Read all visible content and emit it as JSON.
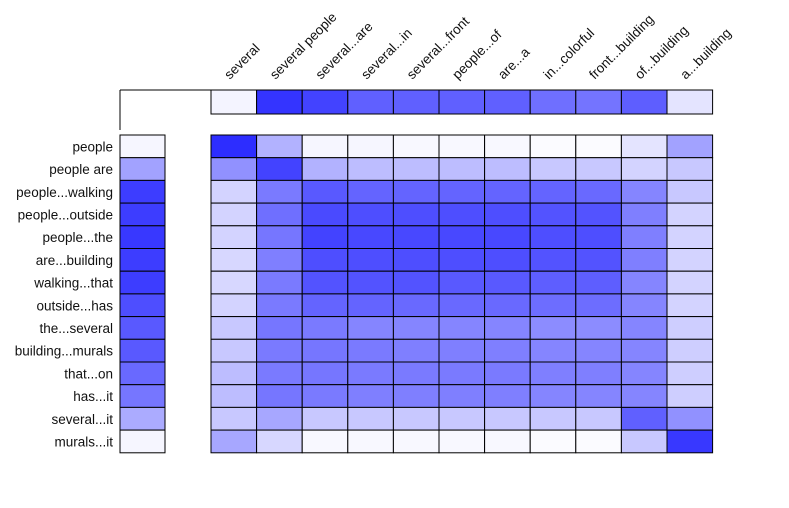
{
  "chart_data": {
    "type": "heatmap",
    "title": "",
    "xlabel": "",
    "ylabel": "",
    "x_labels": [
      "several",
      "several people",
      "several...are",
      "several...in",
      "several...front",
      "people...of",
      "are...a",
      "in...colorful",
      "front...building",
      "of...building",
      "a...building"
    ],
    "y_labels": [
      "people",
      "people are",
      "people...walking",
      "people...outside",
      "people...the",
      "are...building",
      "walking...that",
      "outside...has",
      "the...several",
      "building...murals",
      "that...on",
      "has...it",
      "several...it",
      "murals...it"
    ],
    "value_range": [
      0,
      1
    ],
    "low_color": "#ffffff",
    "high_color": "#2222ff",
    "top_strip": [
      0.05,
      0.92,
      0.85,
      0.72,
      0.72,
      0.72,
      0.72,
      0.65,
      0.63,
      0.73,
      0.12
    ],
    "left_strip": [
      0.04,
      0.42,
      0.88,
      0.88,
      0.9,
      0.88,
      0.88,
      0.8,
      0.75,
      0.75,
      0.68,
      0.62,
      0.38,
      0.04
    ],
    "matrix": [
      [
        0.95,
        0.35,
        0.04,
        0.04,
        0.03,
        0.03,
        0.03,
        0.02,
        0.02,
        0.12,
        0.42
      ],
      [
        0.5,
        0.85,
        0.35,
        0.3,
        0.3,
        0.3,
        0.3,
        0.25,
        0.25,
        0.2,
        0.25
      ],
      [
        0.2,
        0.6,
        0.75,
        0.7,
        0.7,
        0.7,
        0.7,
        0.7,
        0.68,
        0.55,
        0.25
      ],
      [
        0.2,
        0.65,
        0.82,
        0.8,
        0.8,
        0.8,
        0.8,
        0.78,
        0.78,
        0.58,
        0.2
      ],
      [
        0.2,
        0.62,
        0.85,
        0.83,
        0.83,
        0.83,
        0.83,
        0.8,
        0.8,
        0.58,
        0.2
      ],
      [
        0.18,
        0.58,
        0.8,
        0.8,
        0.8,
        0.8,
        0.8,
        0.78,
        0.78,
        0.58,
        0.2
      ],
      [
        0.18,
        0.6,
        0.78,
        0.78,
        0.78,
        0.75,
        0.75,
        0.73,
        0.73,
        0.55,
        0.2
      ],
      [
        0.2,
        0.6,
        0.7,
        0.7,
        0.68,
        0.68,
        0.68,
        0.66,
        0.66,
        0.55,
        0.2
      ],
      [
        0.25,
        0.62,
        0.6,
        0.55,
        0.55,
        0.55,
        0.55,
        0.52,
        0.52,
        0.55,
        0.22
      ],
      [
        0.25,
        0.6,
        0.62,
        0.6,
        0.58,
        0.58,
        0.58,
        0.55,
        0.55,
        0.55,
        0.22
      ],
      [
        0.3,
        0.6,
        0.62,
        0.6,
        0.6,
        0.6,
        0.6,
        0.58,
        0.58,
        0.55,
        0.22
      ],
      [
        0.3,
        0.62,
        0.6,
        0.58,
        0.58,
        0.58,
        0.58,
        0.55,
        0.55,
        0.55,
        0.22
      ],
      [
        0.25,
        0.4,
        0.25,
        0.25,
        0.25,
        0.25,
        0.25,
        0.25,
        0.25,
        0.72,
        0.5
      ],
      [
        0.4,
        0.18,
        0.03,
        0.03,
        0.03,
        0.03,
        0.03,
        0.02,
        0.02,
        0.25,
        0.9
      ]
    ]
  }
}
